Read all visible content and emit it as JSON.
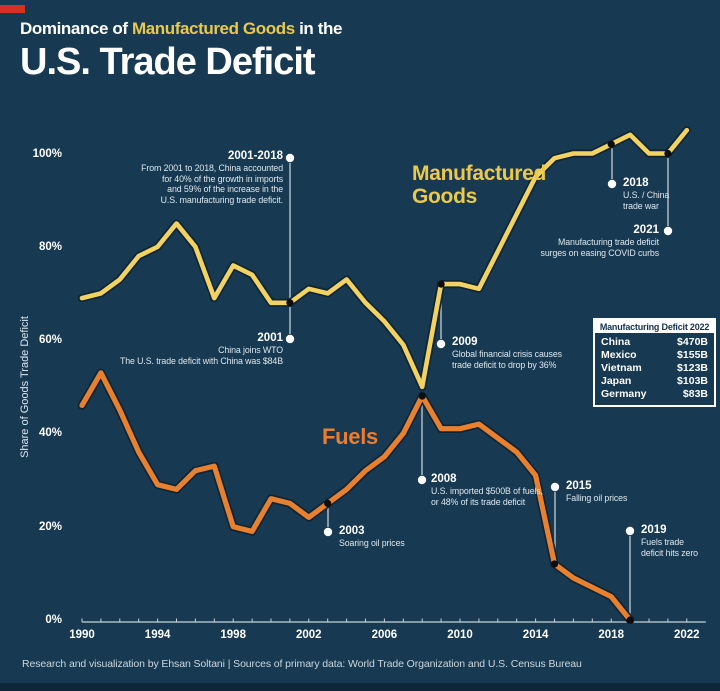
{
  "title": {
    "line1_part1": "Dominance of ",
    "line1_highlight": "Manufactured Goods",
    "line1_part2": " in the",
    "line2": "U.S. Trade Deficit"
  },
  "y_axis_title": "Share of Goods Trade Deficit",
  "series_labels": {
    "manufactured_line1": "Manufactured",
    "manufactured_line2": "Goods",
    "fuels": "Fuels"
  },
  "annotations": {
    "a2001_2018": {
      "year": "2001-2018",
      "lines": [
        "From 2001 to 2018, China accounted",
        "for 40% of the growth in imports",
        "and 59% of the increase in the",
        "U.S. manufacturing trade deficit."
      ]
    },
    "a2001": {
      "year": "2001",
      "lines": [
        "China joins WTO",
        "The U.S. trade deficit with China was $84B"
      ]
    },
    "a2009": {
      "year": "2009",
      "lines": [
        "Global financial crisis causes",
        "trade deficit to drop by 36%"
      ]
    },
    "a2008": {
      "year": "2008",
      "lines": [
        "U.S. imported $500B of fuels,",
        "or 48% of its trade deficit"
      ]
    },
    "a2015": {
      "year": "2015",
      "lines": [
        "Falling oil prices"
      ]
    },
    "a2019": {
      "year": "2019",
      "lines": [
        "Fuels trade",
        "deficit hits zero"
      ]
    },
    "a2018": {
      "year": "2018",
      "lines": [
        "U.S. / China",
        "trade war"
      ]
    },
    "a2021": {
      "year": "2021",
      "lines": [
        "Manufacturing trade deficit",
        "surges on easing COVID curbs"
      ]
    },
    "a2003": {
      "year": "2003",
      "lines": [
        "Soaring oil prices"
      ]
    }
  },
  "table": {
    "title": "Manufacturing Deficit 2022",
    "rows": [
      {
        "country": "China",
        "value": "$470B"
      },
      {
        "country": "Mexico",
        "value": "$155B"
      },
      {
        "country": "Vietnam",
        "value": "$123B"
      },
      {
        "country": "Japan",
        "value": "$103B"
      },
      {
        "country": "Germany",
        "value": "$83B"
      }
    ]
  },
  "footer": "Research and visualization by Ehsan Soltani | Sources of primary data: World Trade Organization and U.S. Census Bureau",
  "colors": {
    "background": "#173951",
    "manufactured_line": "#f2d361",
    "manufactured_label": "#edc94b",
    "fuels_line": "#e8812f",
    "fuels_label": "#ed7d2e",
    "accent_red": "#d43227",
    "axis": "#c7d2da",
    "leader": "#b6c3cd"
  },
  "chart_data": {
    "type": "line",
    "title": "Dominance of Manufactured Goods in the U.S. Trade Deficit",
    "xlabel": "",
    "ylabel": "Share of Goods Trade Deficit",
    "ylim": [
      0,
      107
    ],
    "grid": false,
    "legend_position": "inline-labels",
    "x": [
      1990,
      1991,
      1992,
      1993,
      1994,
      1995,
      1996,
      1997,
      1998,
      1999,
      2000,
      2001,
      2002,
      2003,
      2004,
      2005,
      2006,
      2007,
      2008,
      2009,
      2010,
      2011,
      2012,
      2013,
      2014,
      2015,
      2016,
      2017,
      2018,
      2019,
      2020,
      2021,
      2022
    ],
    "x_ticks": [
      1990,
      1994,
      1998,
      2002,
      2006,
      2010,
      2014,
      2018,
      2022
    ],
    "y_ticks": [
      100,
      80,
      60,
      40,
      20,
      0
    ],
    "series": [
      {
        "name": "Manufactured Goods",
        "color": "#f2d361",
        "values": [
          69,
          70,
          73,
          78,
          80,
          85,
          80,
          69,
          76,
          74,
          68,
          68,
          71,
          70,
          73,
          68,
          64,
          59,
          50,
          72,
          72,
          71,
          79,
          87,
          95,
          99,
          100,
          100,
          102,
          104,
          100,
          100,
          105
        ]
      },
      {
        "name": "Fuels",
        "color": "#e8812f",
        "values": [
          46,
          53,
          45,
          36,
          29,
          28,
          32,
          33,
          20,
          19,
          26,
          25,
          22,
          25,
          28,
          32,
          35,
          40,
          48,
          41,
          41,
          42,
          39,
          36,
          31,
          12,
          9,
          7,
          5,
          0,
          null,
          null,
          null
        ]
      }
    ],
    "markers": [
      {
        "series": 0,
        "year": 2001
      },
      {
        "series": 0,
        "year": 2009
      },
      {
        "series": 0,
        "year": 2018
      },
      {
        "series": 0,
        "year": 2021
      },
      {
        "series": 1,
        "year": 2003
      },
      {
        "series": 1,
        "year": 2008
      },
      {
        "series": 1,
        "year": 2015
      },
      {
        "series": 1,
        "year": 2019
      }
    ]
  }
}
